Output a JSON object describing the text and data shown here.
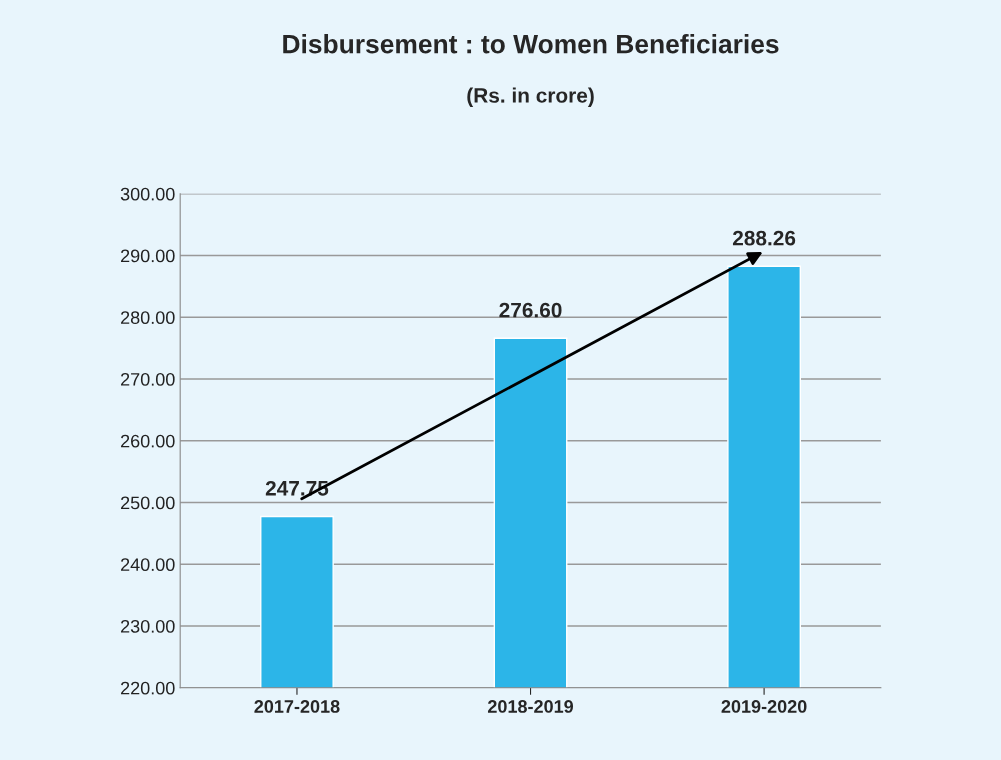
{
  "chart_data": {
    "type": "bar",
    "title": "Disbursement : to Women Beneficiaries",
    "subtitle": "(Rs. in crore)",
    "categories": [
      "2017-2018",
      "2018-2019",
      "2019-2020"
    ],
    "values": [
      247.75,
      276.6,
      288.26
    ],
    "value_labels": [
      "247.75",
      "276.60",
      "288.26"
    ],
    "color": "#2cb5e8",
    "ylim": [
      220,
      300
    ],
    "yticks": [
      {
        "value": 220,
        "label": "220.00"
      },
      {
        "value": 230,
        "label": "230.00"
      },
      {
        "value": 240,
        "label": "240.00"
      },
      {
        "value": 250,
        "label": "250.00"
      },
      {
        "value": 260,
        "label": "260.00"
      },
      {
        "value": 270,
        "label": "270.00"
      },
      {
        "value": 280,
        "label": "280.00"
      },
      {
        "value": 290,
        "label": "290.00"
      },
      {
        "value": 300,
        "label": "300.00"
      }
    ],
    "grid": "y"
  }
}
